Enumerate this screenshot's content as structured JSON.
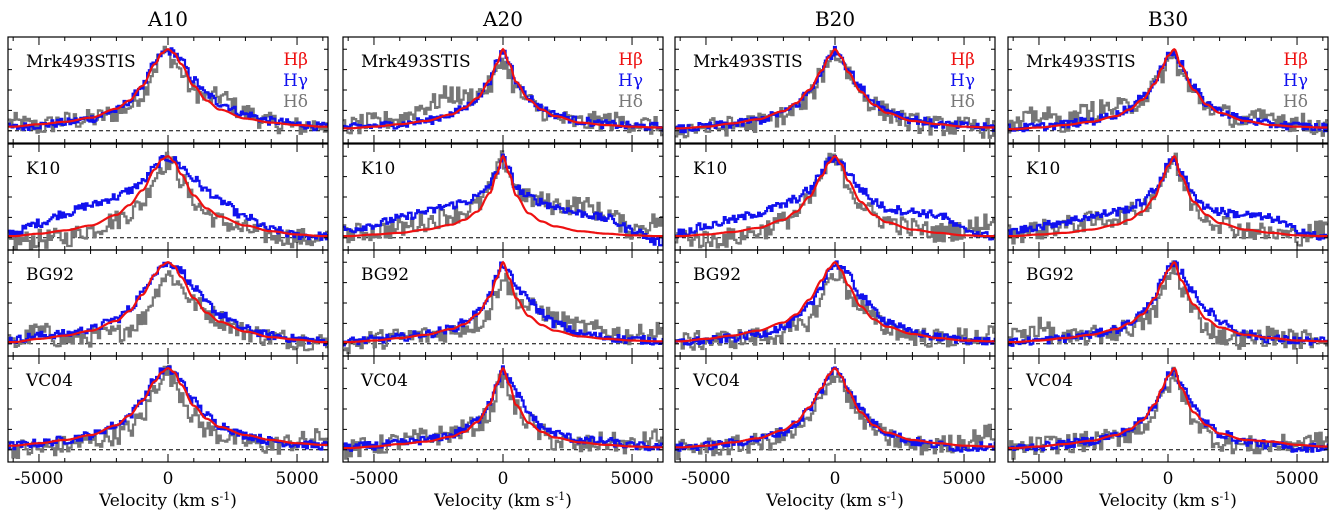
{
  "chart_data": {
    "type": "line",
    "columns": [
      "A10",
      "A20",
      "B20",
      "B30"
    ],
    "rows": [
      "Mrk493STIS",
      "K10",
      "BG92",
      "VC04"
    ],
    "xlabel": "Velocity (km s",
    "xlabel_sup": "-1",
    "xlabel_close": ")",
    "xlim": [
      -6200,
      6200
    ],
    "xticks": [
      -5000,
      0,
      5000
    ],
    "xtick_labels": [
      "-5000",
      "0",
      "5000"
    ],
    "ylim": [
      -0.15,
      1.15
    ],
    "legend": {
      "placement": "top-right of first row",
      "entries": [
        {
          "label": "Hβ",
          "color": "#ee1111"
        },
        {
          "label": "Hγ",
          "color": "#1111ee"
        },
        {
          "label": "Hδ",
          "color": "#777777"
        }
      ]
    },
    "series_colors": {
      "Hbeta": "#ee1111",
      "Hgamma": "#1111ee",
      "Hdelta": "#777777"
    },
    "profile_x": [
      -6000,
      -5000,
      -4000,
      -3000,
      -2000,
      -1500,
      -1000,
      -500,
      -250,
      0,
      250,
      500,
      1000,
      1500,
      2000,
      3000,
      4000,
      5000,
      6000
    ],
    "panels": {
      "A10": {
        "Mrk493STIS": {
          "Hbeta": [
            0.05,
            0.08,
            0.11,
            0.16,
            0.27,
            0.37,
            0.55,
            0.82,
            0.95,
            1.0,
            0.95,
            0.82,
            0.55,
            0.37,
            0.26,
            0.15,
            0.1,
            0.07,
            0.05
          ],
          "Hgamma": [
            0.04,
            0.07,
            0.1,
            0.15,
            0.25,
            0.36,
            0.55,
            0.82,
            0.94,
            0.98,
            0.96,
            0.86,
            0.62,
            0.45,
            0.34,
            0.2,
            0.12,
            0.08,
            0.05
          ],
          "Hdelta": [
            0.1,
            0.05,
            0.12,
            0.14,
            0.22,
            0.3,
            0.45,
            0.78,
            0.94,
            0.95,
            0.85,
            0.72,
            0.48,
            0.4,
            0.42,
            0.22,
            0.1,
            0.05,
            0.08
          ]
        },
        "K10": {
          "Hbeta": [
            0.02,
            0.05,
            0.09,
            0.15,
            0.28,
            0.4,
            0.58,
            0.84,
            0.96,
            1.0,
            0.93,
            0.78,
            0.52,
            0.36,
            0.26,
            0.15,
            0.08,
            0.04,
            0.02
          ],
          "Hgamma": [
            0.06,
            0.18,
            0.3,
            0.4,
            0.5,
            0.58,
            0.68,
            0.86,
            0.95,
            0.98,
            0.95,
            0.88,
            0.72,
            0.58,
            0.45,
            0.25,
            0.1,
            0.03,
            0.02
          ],
          "Hdelta": [
            -0.05,
            -0.02,
            0.0,
            0.1,
            0.22,
            0.3,
            0.42,
            0.75,
            0.88,
            0.95,
            0.88,
            0.72,
            0.45,
            0.3,
            0.2,
            0.1,
            0.03,
            0.0,
            -0.03
          ]
        },
        "BG92": {
          "Hbeta": [
            0.02,
            0.06,
            0.1,
            0.16,
            0.28,
            0.4,
            0.6,
            0.85,
            0.96,
            1.0,
            0.95,
            0.82,
            0.56,
            0.38,
            0.27,
            0.15,
            0.08,
            0.05,
            0.02
          ],
          "Hgamma": [
            0.05,
            0.1,
            0.12,
            0.18,
            0.3,
            0.42,
            0.62,
            0.88,
            0.96,
            0.98,
            0.97,
            0.9,
            0.68,
            0.5,
            0.36,
            0.18,
            0.1,
            0.06,
            0.03
          ],
          "Hdelta": [
            0.0,
            0.15,
            0.05,
            0.08,
            0.12,
            0.2,
            0.3,
            0.6,
            0.8,
            0.85,
            0.8,
            0.7,
            0.5,
            0.4,
            0.3,
            0.15,
            0.08,
            0.05,
            0.02
          ]
        },
        "VC04": {
          "Hbeta": [
            0.05,
            0.08,
            0.12,
            0.18,
            0.3,
            0.42,
            0.6,
            0.84,
            0.95,
            1.0,
            0.95,
            0.8,
            0.54,
            0.38,
            0.28,
            0.18,
            0.12,
            0.08,
            0.06
          ],
          "Hgamma": [
            0.05,
            0.08,
            0.12,
            0.18,
            0.3,
            0.42,
            0.62,
            0.86,
            0.96,
            0.98,
            0.95,
            0.84,
            0.6,
            0.42,
            0.3,
            0.18,
            0.11,
            0.07,
            0.05
          ],
          "Hdelta": [
            0.02,
            0.0,
            0.05,
            0.1,
            0.18,
            0.25,
            0.4,
            0.75,
            0.92,
            0.95,
            0.85,
            0.7,
            0.4,
            0.25,
            0.18,
            0.1,
            0.05,
            0.1,
            0.15
          ]
        }
      },
      "A20": {
        "Mrk493STIS": {
          "Hbeta": [
            0.03,
            0.05,
            0.08,
            0.12,
            0.2,
            0.28,
            0.4,
            0.62,
            0.82,
            1.0,
            0.82,
            0.6,
            0.38,
            0.26,
            0.18,
            0.1,
            0.07,
            0.05,
            0.04
          ],
          "Hgamma": [
            0.04,
            0.06,
            0.08,
            0.12,
            0.2,
            0.28,
            0.4,
            0.62,
            0.82,
            0.98,
            0.84,
            0.62,
            0.4,
            0.28,
            0.2,
            0.12,
            0.08,
            0.06,
            0.05
          ],
          "Hdelta": [
            0.05,
            0.1,
            0.15,
            0.3,
            0.45,
            0.4,
            0.45,
            0.55,
            0.7,
            0.9,
            0.7,
            0.5,
            0.35,
            0.25,
            0.15,
            0.1,
            0.12,
            0.1,
            0.05
          ]
        },
        "K10": {
          "Hbeta": [
            0.02,
            0.04,
            0.06,
            0.1,
            0.16,
            0.22,
            0.32,
            0.55,
            0.78,
            1.0,
            0.78,
            0.52,
            0.3,
            0.2,
            0.14,
            0.08,
            0.05,
            0.03,
            0.02
          ],
          "Hgamma": [
            0.1,
            0.16,
            0.24,
            0.32,
            0.4,
            0.44,
            0.5,
            0.65,
            0.82,
            0.98,
            0.82,
            0.62,
            0.5,
            0.44,
            0.38,
            0.3,
            0.24,
            0.1,
            -0.05
          ],
          "Hdelta": [
            0.05,
            0.08,
            0.12,
            0.2,
            0.28,
            0.32,
            0.4,
            0.58,
            0.8,
            0.96,
            0.8,
            0.6,
            0.48,
            0.45,
            0.4,
            0.4,
            0.3,
            0.1,
            0.2
          ]
        },
        "BG92": {
          "Hbeta": [
            0.02,
            0.04,
            0.07,
            0.11,
            0.18,
            0.24,
            0.36,
            0.58,
            0.8,
            1.0,
            0.8,
            0.56,
            0.34,
            0.23,
            0.16,
            0.09,
            0.06,
            0.04,
            0.03
          ],
          "Hgamma": [
            0.03,
            0.05,
            0.08,
            0.12,
            0.18,
            0.26,
            0.38,
            0.6,
            0.82,
            0.98,
            0.85,
            0.7,
            0.55,
            0.38,
            0.25,
            0.12,
            0.08,
            0.05,
            0.04
          ],
          "Hdelta": [
            0.0,
            0.05,
            0.08,
            0.1,
            0.15,
            0.2,
            0.25,
            0.4,
            0.65,
            0.85,
            0.7,
            0.55,
            0.45,
            0.4,
            0.3,
            0.2,
            0.15,
            0.1,
            0.15
          ]
        },
        "VC04": {
          "Hbeta": [
            0.02,
            0.04,
            0.07,
            0.1,
            0.16,
            0.22,
            0.34,
            0.56,
            0.8,
            1.0,
            0.8,
            0.55,
            0.33,
            0.22,
            0.15,
            0.09,
            0.06,
            0.04,
            0.03
          ],
          "Hgamma": [
            0.03,
            0.05,
            0.08,
            0.12,
            0.18,
            0.25,
            0.36,
            0.58,
            0.82,
            0.98,
            0.86,
            0.7,
            0.45,
            0.28,
            0.2,
            0.12,
            0.1,
            0.05,
            0.03
          ],
          "Hdelta": [
            0.0,
            0.05,
            0.1,
            0.15,
            0.2,
            0.25,
            0.3,
            0.45,
            0.7,
            0.9,
            0.7,
            0.5,
            0.35,
            0.2,
            0.1,
            0.05,
            0.1,
            0.05,
            0.15
          ]
        }
      },
      "B20": {
        "Mrk493STIS": {
          "Hbeta": [
            0.03,
            0.05,
            0.09,
            0.14,
            0.24,
            0.34,
            0.5,
            0.74,
            0.9,
            1.0,
            0.9,
            0.72,
            0.48,
            0.32,
            0.22,
            0.12,
            0.08,
            0.05,
            0.04
          ],
          "Hgamma": [
            0.02,
            0.05,
            0.08,
            0.13,
            0.22,
            0.32,
            0.48,
            0.72,
            0.9,
            0.98,
            0.92,
            0.76,
            0.52,
            0.36,
            0.25,
            0.14,
            0.08,
            0.06,
            0.04
          ],
          "Hdelta": [
            0.02,
            0.04,
            0.06,
            0.1,
            0.18,
            0.26,
            0.4,
            0.7,
            0.88,
            0.95,
            0.88,
            0.72,
            0.48,
            0.32,
            0.22,
            0.1,
            0.06,
            0.05,
            0.03
          ]
        },
        "K10": {
          "Hbeta": [
            0.02,
            0.04,
            0.07,
            0.12,
            0.22,
            0.32,
            0.5,
            0.76,
            0.92,
            1.0,
            0.9,
            0.7,
            0.44,
            0.28,
            0.19,
            0.1,
            0.06,
            0.03,
            0.02
          ],
          "Hgamma": [
            0.06,
            0.14,
            0.22,
            0.3,
            0.4,
            0.48,
            0.58,
            0.8,
            0.94,
            0.98,
            0.92,
            0.8,
            0.6,
            0.45,
            0.36,
            0.32,
            0.28,
            0.1,
            0.02
          ],
          "Hdelta": [
            0.02,
            -0.02,
            0.0,
            0.08,
            0.2,
            0.3,
            0.45,
            0.75,
            0.92,
            0.95,
            0.85,
            0.65,
            0.42,
            0.28,
            0.2,
            0.12,
            0.06,
            0.1,
            0.2
          ]
        },
        "BG92": {
          "Hbeta": [
            0.03,
            0.06,
            0.1,
            0.16,
            0.26,
            0.36,
            0.54,
            0.78,
            0.92,
            1.0,
            0.9,
            0.72,
            0.46,
            0.3,
            0.21,
            0.12,
            0.07,
            0.04,
            0.03
          ],
          "Hgamma": [
            0.02,
            0.04,
            0.07,
            0.12,
            0.2,
            0.3,
            0.46,
            0.72,
            0.9,
            0.98,
            0.95,
            0.84,
            0.6,
            0.42,
            0.28,
            0.14,
            0.08,
            0.05,
            0.03
          ],
          "Hdelta": [
            0.02,
            0.04,
            0.06,
            0.08,
            0.12,
            0.18,
            0.28,
            0.55,
            0.78,
            0.88,
            0.8,
            0.65,
            0.45,
            0.3,
            0.2,
            0.1,
            0.06,
            0.08,
            0.1
          ]
        },
        "VC04": {
          "Hbeta": [
            0.03,
            0.05,
            0.09,
            0.14,
            0.24,
            0.34,
            0.52,
            0.76,
            0.92,
            1.0,
            0.9,
            0.72,
            0.46,
            0.3,
            0.21,
            0.12,
            0.08,
            0.05,
            0.04
          ],
          "Hgamma": [
            0.03,
            0.05,
            0.08,
            0.13,
            0.22,
            0.32,
            0.5,
            0.74,
            0.92,
            0.98,
            0.92,
            0.76,
            0.5,
            0.32,
            0.22,
            0.1,
            0.06,
            0.02,
            0.05
          ],
          "Hdelta": [
            0.0,
            0.03,
            0.05,
            0.08,
            0.15,
            0.22,
            0.35,
            0.65,
            0.88,
            0.95,
            0.85,
            0.65,
            0.4,
            0.25,
            0.15,
            0.05,
            0.05,
            0.1,
            0.2
          ]
        }
      },
      "B30": {
        "Mrk493STIS": {
          "Hbeta": [
            0.02,
            0.04,
            0.07,
            0.11,
            0.18,
            0.26,
            0.38,
            0.58,
            0.76,
            0.92,
            1.0,
            0.8,
            0.5,
            0.32,
            0.22,
            0.12,
            0.07,
            0.05,
            0.04
          ],
          "Hgamma": [
            0.03,
            0.05,
            0.08,
            0.12,
            0.2,
            0.28,
            0.4,
            0.6,
            0.78,
            0.92,
            0.98,
            0.82,
            0.52,
            0.34,
            0.24,
            0.13,
            0.08,
            0.06,
            0.04
          ],
          "Hdelta": [
            0.05,
            0.2,
            0.1,
            0.25,
            0.28,
            0.3,
            0.4,
            0.55,
            0.7,
            0.82,
            0.9,
            0.7,
            0.45,
            0.32,
            0.22,
            0.12,
            0.18,
            0.1,
            0.05
          ]
        },
        "K10": {
          "Hbeta": [
            0.02,
            0.04,
            0.06,
            0.1,
            0.16,
            0.22,
            0.32,
            0.5,
            0.7,
            0.88,
            1.0,
            0.76,
            0.44,
            0.28,
            0.18,
            0.1,
            0.06,
            0.03,
            0.02
          ],
          "Hgamma": [
            0.08,
            0.14,
            0.2,
            0.26,
            0.32,
            0.36,
            0.44,
            0.58,
            0.74,
            0.9,
            0.98,
            0.8,
            0.52,
            0.38,
            0.32,
            0.28,
            0.24,
            0.1,
            0.0
          ],
          "Hdelta": [
            0.05,
            0.1,
            0.15,
            0.2,
            0.25,
            0.3,
            0.38,
            0.55,
            0.7,
            0.86,
            0.95,
            0.72,
            0.4,
            0.25,
            0.18,
            0.1,
            0.05,
            0.02,
            0.1
          ]
        },
        "BG92": {
          "Hbeta": [
            0.02,
            0.04,
            0.07,
            0.11,
            0.18,
            0.25,
            0.36,
            0.56,
            0.74,
            0.9,
            1.0,
            0.78,
            0.48,
            0.3,
            0.2,
            0.11,
            0.07,
            0.04,
            0.03
          ],
          "Hgamma": [
            0.02,
            0.04,
            0.07,
            0.11,
            0.18,
            0.25,
            0.38,
            0.58,
            0.76,
            0.9,
            0.98,
            0.88,
            0.62,
            0.42,
            0.28,
            0.12,
            0.06,
            0.04,
            0.03
          ],
          "Hdelta": [
            0.1,
            0.2,
            0.05,
            0.1,
            0.15,
            0.2,
            0.25,
            0.4,
            0.6,
            0.8,
            0.95,
            0.7,
            0.4,
            0.2,
            0.1,
            0.05,
            0.1,
            0.05,
            0.08
          ]
        },
        "VC04": {
          "Hbeta": [
            0.02,
            0.04,
            0.07,
            0.11,
            0.18,
            0.25,
            0.36,
            0.56,
            0.74,
            0.9,
            1.0,
            0.76,
            0.46,
            0.3,
            0.2,
            0.12,
            0.1,
            0.06,
            0.04
          ],
          "Hgamma": [
            0.02,
            0.04,
            0.07,
            0.11,
            0.18,
            0.25,
            0.36,
            0.56,
            0.74,
            0.9,
            0.98,
            0.82,
            0.52,
            0.32,
            0.2,
            0.1,
            0.06,
            0.02,
            0.03
          ],
          "Hdelta": [
            0.0,
            0.05,
            0.08,
            0.1,
            0.15,
            0.2,
            0.28,
            0.45,
            0.62,
            0.8,
            0.9,
            0.7,
            0.4,
            0.2,
            0.1,
            0.05,
            0.05,
            0.08,
            0.1
          ]
        }
      }
    }
  }
}
